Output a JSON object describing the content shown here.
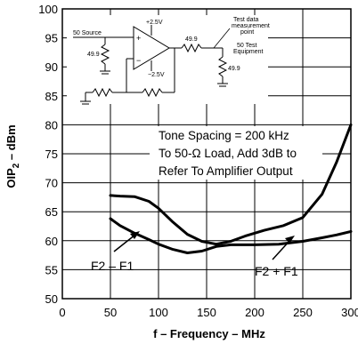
{
  "chart_data": {
    "type": "line",
    "title": "",
    "xlabel": "f – Frequency – MHz",
    "ylabel_main": "OIP",
    "ylabel_sub": "2",
    "ylabel_rest": " – dBm",
    "xlim": [
      0,
      300
    ],
    "ylim": [
      50,
      100
    ],
    "xticks": [
      0,
      50,
      100,
      150,
      200,
      250,
      300
    ],
    "xtick_labels": [
      "0",
      "50",
      "100",
      "150",
      "200",
      "250",
      "300"
    ],
    "yticks": [
      50,
      55,
      60,
      65,
      70,
      75,
      80,
      85,
      90,
      95,
      100
    ],
    "ytick_labels": [
      "50",
      "55",
      "60",
      "65",
      "70",
      "75",
      "80",
      "85",
      "90",
      "95",
      "100"
    ],
    "grid": true,
    "series": [
      {
        "name": "F2 – F1",
        "x": [
          50,
          60,
          75,
          90,
          100,
          115,
          130,
          145,
          160,
          175,
          190,
          210,
          230,
          250,
          270,
          285,
          300
        ],
        "y": [
          67.8,
          67.7,
          67.6,
          66.8,
          65.6,
          63.2,
          61.1,
          59.9,
          59.4,
          59.9,
          60.8,
          61.8,
          62.6,
          64.0,
          68.0,
          73.5,
          80.0
        ]
      },
      {
        "name": "F2 + F1",
        "x": [
          50,
          60,
          75,
          90,
          100,
          115,
          130,
          145,
          160,
          175,
          200,
          225,
          250,
          270,
          285,
          300
        ],
        "y": [
          63.8,
          62.6,
          61.3,
          60.2,
          59.4,
          58.5,
          57.9,
          58.2,
          59.0,
          59.3,
          59.3,
          59.4,
          59.9,
          60.5,
          61.0,
          61.6
        ]
      }
    ],
    "annotations": {
      "note_line1": "Tone Spacing = 200 kHz",
      "note_line2": "To 50-Ω Load, Add 3dB to",
      "note_line3": "Refer To Amplifier Output",
      "label_left": "F2 – F1",
      "label_right": "F2 + F1"
    },
    "circuit": {
      "source": "50 Source",
      "r1": "49.9",
      "vpos": "+2.5V",
      "vneg": "−2.5V",
      "plus": "+",
      "minus": "−",
      "r_out": "49.9",
      "meas_1": "Test data",
      "meas_2": "measurement",
      "meas_3": "point",
      "equip_1": "50 Test",
      "equip_2": "Equipment",
      "r_load": "49.9"
    }
  }
}
